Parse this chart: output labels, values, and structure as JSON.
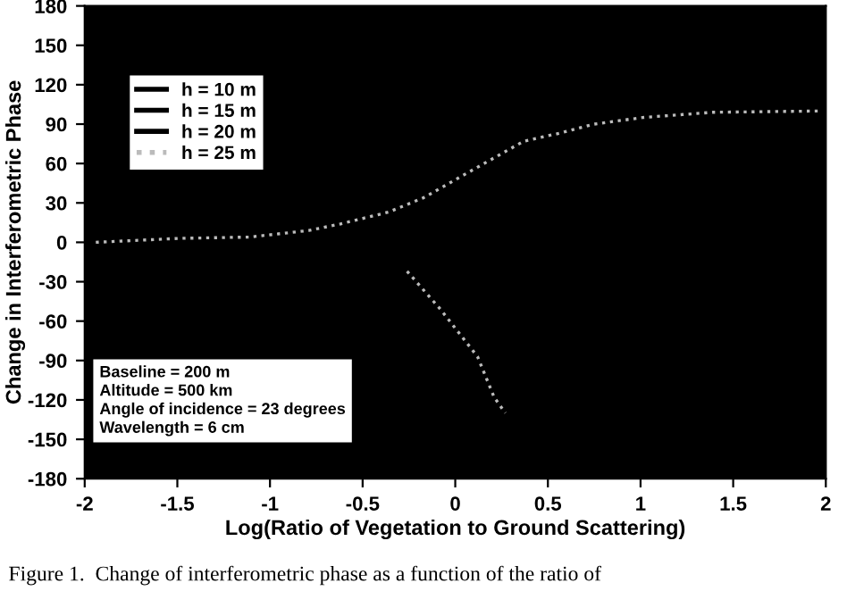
{
  "chart_data": {
    "type": "line",
    "xlabel": "Log(Ratio of Vegetation to Ground Scattering)",
    "ylabel": "Change in Interferometric Phase",
    "xlim": [
      -2,
      2
    ],
    "xticks": [
      -2,
      -1.5,
      -1,
      -0.5,
      0,
      0.5,
      1,
      1.5,
      2
    ],
    "ylim": [
      -180,
      180
    ],
    "yticks": [
      -180,
      -150,
      -120,
      -90,
      -60,
      -30,
      0,
      30,
      60,
      90,
      120,
      150,
      180
    ],
    "grid": false,
    "legend": "top left",
    "marker": "none",
    "x": [
      -1.94,
      -1.49,
      -1.11,
      -0.79,
      -0.62,
      -0.36,
      -0.17,
      0.08,
      0.37,
      0.56,
      0.75,
      1.01,
      1.39,
      1.97
    ],
    "series": [
      {
        "name": "h = 10 m",
        "color": "#000000",
        "line_style": "solid",
        "values": [
          null,
          null,
          null,
          null,
          null,
          null,
          null,
          null,
          null,
          null,
          null,
          null,
          null,
          null
        ]
      },
      {
        "name": "h = 15 m",
        "color": "#000000",
        "line_style": "solid",
        "values": [
          null,
          null,
          null,
          null,
          null,
          null,
          null,
          null,
          null,
          null,
          null,
          null,
          null,
          null
        ]
      },
      {
        "name": "h = 20 m",
        "color": "#000000",
        "line_style": "solid",
        "values": [
          null,
          null,
          null,
          null,
          null,
          null,
          null,
          null,
          null,
          null,
          null,
          null,
          null,
          null
        ]
      },
      {
        "name": "h = 25 m",
        "color": "#bbbbbb",
        "line_style": "dotted",
        "values": [
          0,
          3,
          4,
          9,
          14,
          23,
          34,
          54,
          77,
          83,
          90,
          95,
          99,
          100
        ]
      },
      {
        "color": "#bbbbbb",
        "line_style": "dotted",
        "x": [
          -0.26,
          -0.08,
          0.12,
          0.21,
          0.27
        ],
        "values": [
          -22,
          -51,
          -87,
          -118,
          -130
        ]
      }
    ],
    "annotations": [
      "Baseline = 200 m\nAltitude = 500 km\nAngle of incidence = 23 degrees\nWavelength = 6 cm",
      "Figure 1.  Change of interferometric phase as a function of the ratio of"
    ]
  }
}
